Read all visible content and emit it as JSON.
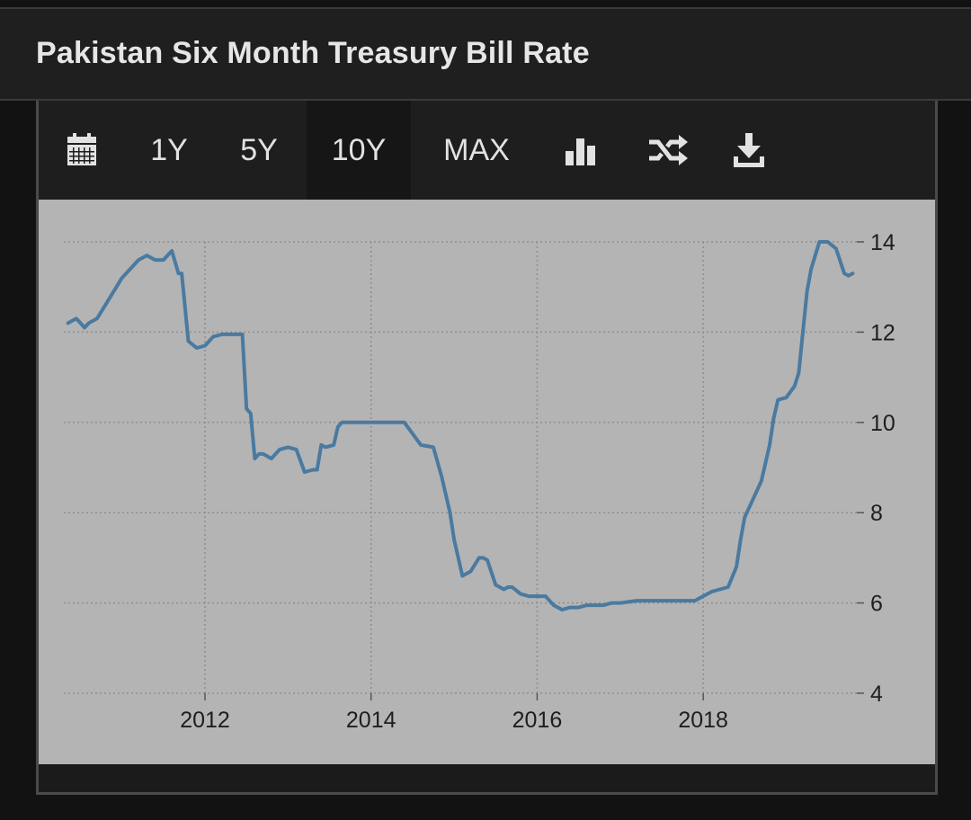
{
  "header": {
    "title": "Pakistan Six Month Treasury Bill Rate"
  },
  "toolbar": {
    "calendar_icon": "calendar-icon",
    "range_1y": "1Y",
    "range_5y": "5Y",
    "range_10y": "10Y",
    "range_max": "MAX",
    "bar_chart_icon": "bar-chart-icon",
    "shuffle_icon": "shuffle-icon",
    "download_icon": "download-icon",
    "active_range": "10Y"
  },
  "colors": {
    "line": "#4a7aa0",
    "plot_background": "#b4b4b4",
    "grid": "#8e8e8e",
    "page_background": "#121212"
  },
  "chart_data": {
    "type": "line",
    "title": "Pakistan Six Month Treasury Bill Rate",
    "xlabel": "",
    "ylabel": "",
    "xlim": [
      2010.3,
      2019.85
    ],
    "ylim": [
      4,
      14
    ],
    "x_ticks": [
      2012,
      2014,
      2016,
      2018
    ],
    "x_tick_labels": [
      "2012",
      "2014",
      "2016",
      "2018"
    ],
    "y_ticks": [
      4,
      6,
      8,
      10,
      12,
      14
    ],
    "y_tick_labels": [
      "4",
      "6",
      "8",
      "10",
      "12",
      "14"
    ],
    "y_axis_side": "right",
    "grid": true,
    "series": [
      {
        "name": "Pakistan Six Month Treasury Bill Rate",
        "x": [
          2010.35,
          2010.45,
          2010.55,
          2010.6,
          2010.7,
          2010.8,
          2010.9,
          2011.0,
          2011.1,
          2011.2,
          2011.3,
          2011.4,
          2011.5,
          2011.55,
          2011.6,
          2011.68,
          2011.72,
          2011.8,
          2011.9,
          2012.0,
          2012.1,
          2012.2,
          2012.3,
          2012.45,
          2012.5,
          2012.55,
          2012.6,
          2012.65,
          2012.7,
          2012.8,
          2012.9,
          2013.0,
          2013.1,
          2013.2,
          2013.3,
          2013.35,
          2013.4,
          2013.45,
          2013.55,
          2013.6,
          2013.65,
          2013.7,
          2013.8,
          2013.9,
          2014.0,
          2014.2,
          2014.4,
          2014.6,
          2014.75,
          2014.85,
          2014.95,
          2015.0,
          2015.1,
          2015.2,
          2015.3,
          2015.35,
          2015.4,
          2015.5,
          2015.6,
          2015.65,
          2015.7,
          2015.8,
          2015.9,
          2016.0,
          2016.1,
          2016.2,
          2016.3,
          2016.4,
          2016.5,
          2016.6,
          2016.7,
          2016.8,
          2016.9,
          2017.0,
          2017.2,
          2017.4,
          2017.6,
          2017.8,
          2017.9,
          2018.0,
          2018.1,
          2018.2,
          2018.3,
          2018.4,
          2018.45,
          2018.5,
          2018.6,
          2018.7,
          2018.8,
          2018.85,
          2018.9,
          2019.0,
          2019.1,
          2019.15,
          2019.2,
          2019.25,
          2019.3,
          2019.4,
          2019.5,
          2019.6,
          2019.7,
          2019.75,
          2019.8
        ],
        "values": [
          12.2,
          12.3,
          12.1,
          12.2,
          12.3,
          12.6,
          12.9,
          13.2,
          13.4,
          13.6,
          13.7,
          13.6,
          13.6,
          13.7,
          13.8,
          13.3,
          13.3,
          11.8,
          11.65,
          11.7,
          11.9,
          11.95,
          11.95,
          11.95,
          10.3,
          10.2,
          9.2,
          9.3,
          9.3,
          9.2,
          9.4,
          9.45,
          9.4,
          8.9,
          8.95,
          8.95,
          9.5,
          9.45,
          9.5,
          9.9,
          10.0,
          10.0,
          10.0,
          10.0,
          10.0,
          10.0,
          10.0,
          9.5,
          9.45,
          8.8,
          8.0,
          7.4,
          6.6,
          6.7,
          7.0,
          7.0,
          6.95,
          6.4,
          6.3,
          6.35,
          6.35,
          6.2,
          6.15,
          6.15,
          6.15,
          5.95,
          5.85,
          5.9,
          5.9,
          5.95,
          5.95,
          5.95,
          6.0,
          6.0,
          6.05,
          6.05,
          6.05,
          6.05,
          6.05,
          6.15,
          6.25,
          6.3,
          6.35,
          6.8,
          7.4,
          7.9,
          8.3,
          8.7,
          9.5,
          10.1,
          10.5,
          10.55,
          10.8,
          11.1,
          12.0,
          12.9,
          13.4,
          14.0,
          14.0,
          13.85,
          13.3,
          13.25,
          13.3
        ]
      }
    ]
  }
}
